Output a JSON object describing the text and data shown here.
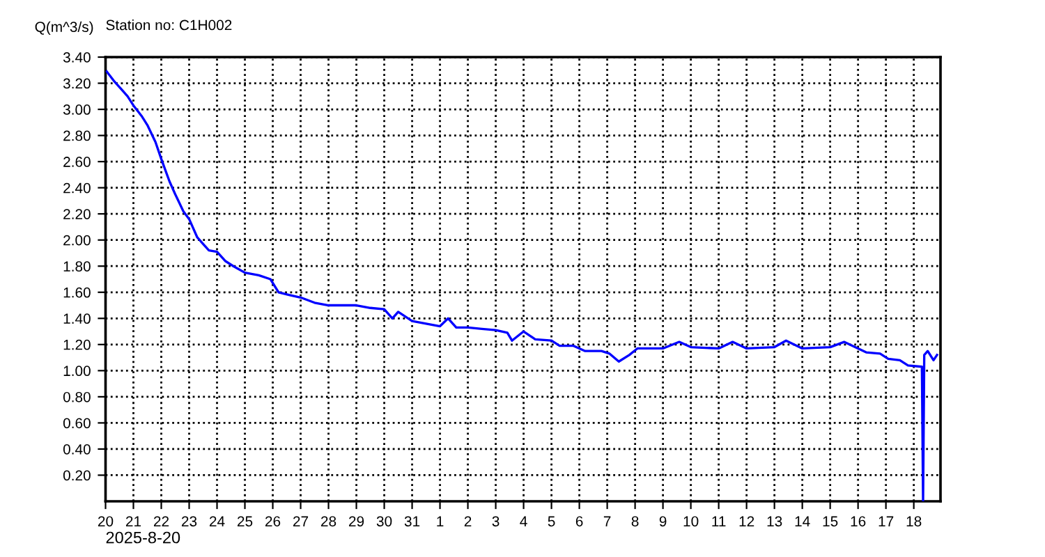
{
  "chart_data": {
    "type": "line",
    "title": "Station no: C1H002",
    "ylabel": "Q(m^3/s)",
    "xlabel": "2025-8-20",
    "x": [
      "2025-08-20T01:00",
      "2025-08-20T07:00",
      "2025-08-20T14:00",
      "2025-08-20T19:00",
      "2025-08-21T00:00",
      "2025-08-21T07:00",
      "2025-08-21T12:00",
      "2025-08-21T19:00",
      "2025-08-22T00:00",
      "2025-08-22T07:00",
      "2025-08-22T12:00",
      "2025-08-22T19:00",
      "2025-08-23T00:00",
      "2025-08-23T07:00",
      "2025-08-23T12:00",
      "2025-08-23T17:00",
      "2025-08-24T00:00",
      "2025-08-24T07:00",
      "2025-08-24T14:00",
      "2025-08-25T00:00",
      "2025-08-25T12:00",
      "2025-08-25T22:00",
      "2025-08-26T05:00",
      "2025-08-26T14:00",
      "2025-08-27T00:00",
      "2025-08-27T12:00",
      "2025-08-28T00:00",
      "2025-08-28T12:00",
      "2025-08-29T00:00",
      "2025-08-29T12:00",
      "2025-08-30T00:00",
      "2025-08-30T07:00",
      "2025-08-30T12:00",
      "2025-08-31T00:00",
      "2025-08-31T12:00",
      "2025-09-01T00:00",
      "2025-09-01T07:00",
      "2025-09-01T14:00",
      "2025-09-02T00:00",
      "2025-09-02T12:00",
      "2025-09-03T00:00",
      "2025-09-03T10:00",
      "2025-09-03T14:00",
      "2025-09-04T00:00",
      "2025-09-04T10:00",
      "2025-09-05T00:00",
      "2025-09-05T07:00",
      "2025-09-05T19:00",
      "2025-09-06T05:00",
      "2025-09-06T19:00",
      "2025-09-07T02:00",
      "2025-09-07T10:00",
      "2025-09-07T19:00",
      "2025-09-08T02:00",
      "2025-09-09T00:00",
      "2025-09-09T14:00",
      "2025-09-10T00:00",
      "2025-09-11T00:00",
      "2025-09-11T12:00",
      "2025-09-12T00:00",
      "2025-09-13T00:00",
      "2025-09-13T10:00",
      "2025-09-14T00:00",
      "2025-09-15T00:00",
      "2025-09-15T12:00",
      "2025-09-16T00:00",
      "2025-09-16T07:00",
      "2025-09-16T19:00",
      "2025-09-17T02:00",
      "2025-09-17T12:00",
      "2025-09-17T19:00",
      "2025-09-18T07:00",
      "2025-09-18T08:00",
      "2025-09-18T09:00",
      "2025-09-18T12:00",
      "2025-09-18T17:00",
      "2025-09-18T20:00"
    ],
    "series": [
      {
        "color": "#0000ff",
        "values": [
          3.29,
          3.22,
          3.15,
          3.1,
          3.03,
          2.95,
          2.88,
          2.75,
          2.62,
          2.45,
          2.35,
          2.22,
          2.16,
          2.02,
          1.97,
          1.92,
          1.91,
          1.84,
          1.8,
          1.75,
          1.73,
          1.7,
          1.6,
          1.58,
          1.56,
          1.52,
          1.5,
          1.5,
          1.5,
          1.48,
          1.47,
          1.4,
          1.45,
          1.38,
          1.36,
          1.34,
          1.4,
          1.33,
          1.33,
          1.32,
          1.31,
          1.29,
          1.23,
          1.3,
          1.24,
          1.23,
          1.19,
          1.19,
          1.15,
          1.15,
          1.13,
          1.07,
          1.12,
          1.17,
          1.17,
          1.22,
          1.18,
          1.17,
          1.22,
          1.17,
          1.18,
          1.23,
          1.17,
          1.18,
          1.22,
          1.17,
          1.14,
          1.13,
          1.09,
          1.08,
          1.04,
          1.03,
          0,
          1.12,
          1.15,
          1.08,
          1.12
        ]
      }
    ],
    "xlim": [
      "2025-08-20",
      "2025-09-18T23:00"
    ],
    "xticks": [
      {
        "value": "2025-08-20",
        "label": "20"
      },
      {
        "value": "2025-08-21",
        "label": "21"
      },
      {
        "value": "2025-08-22",
        "label": "22"
      },
      {
        "value": "2025-08-23",
        "label": "23"
      },
      {
        "value": "2025-08-24",
        "label": "24"
      },
      {
        "value": "2025-08-25",
        "label": "25"
      },
      {
        "value": "2025-08-26",
        "label": "26"
      },
      {
        "value": "2025-08-27",
        "label": "27"
      },
      {
        "value": "2025-08-28",
        "label": "28"
      },
      {
        "value": "2025-08-29",
        "label": "29"
      },
      {
        "value": "2025-08-30",
        "label": "30"
      },
      {
        "value": "2025-08-31",
        "label": "31"
      },
      {
        "value": "2025-09-01",
        "label": "1"
      },
      {
        "value": "2025-09-02",
        "label": "2"
      },
      {
        "value": "2025-09-03",
        "label": "3"
      },
      {
        "value": "2025-09-04",
        "label": "4"
      },
      {
        "value": "2025-09-05",
        "label": "5"
      },
      {
        "value": "2025-09-06",
        "label": "6"
      },
      {
        "value": "2025-09-07",
        "label": "7"
      },
      {
        "value": "2025-09-08",
        "label": "8"
      },
      {
        "value": "2025-09-09",
        "label": "9"
      },
      {
        "value": "2025-09-10",
        "label": "10"
      },
      {
        "value": "2025-09-11",
        "label": "11"
      },
      {
        "value": "2025-09-12",
        "label": "12"
      },
      {
        "value": "2025-09-13",
        "label": "13"
      },
      {
        "value": "2025-09-14",
        "label": "14"
      },
      {
        "value": "2025-09-15",
        "label": "15"
      },
      {
        "value": "2025-09-16",
        "label": "16"
      },
      {
        "value": "2025-09-17",
        "label": "17"
      },
      {
        "value": "2025-09-18",
        "label": "18"
      }
    ],
    "ylim": [
      0,
      3.4
    ],
    "yticks": [
      {
        "value": 0.2,
        "label": "0.20"
      },
      {
        "value": 0.4,
        "label": "0.40"
      },
      {
        "value": 0.6,
        "label": "0.60"
      },
      {
        "value": 0.8,
        "label": "0.80"
      },
      {
        "value": 1.0,
        "label": "1.00"
      },
      {
        "value": 1.2,
        "label": "1.20"
      },
      {
        "value": 1.4,
        "label": "1.40"
      },
      {
        "value": 1.6,
        "label": "1.60"
      },
      {
        "value": 1.8,
        "label": "1.80"
      },
      {
        "value": 2.0,
        "label": "2.00"
      },
      {
        "value": 2.2,
        "label": "2.20"
      },
      {
        "value": 2.4,
        "label": "2.40"
      },
      {
        "value": 2.6,
        "label": "2.60"
      },
      {
        "value": 2.8,
        "label": "2.80"
      },
      {
        "value": 3.0,
        "label": "3.00"
      },
      {
        "value": 3.2,
        "label": "3.20"
      },
      {
        "value": 3.4,
        "label": "3.40"
      }
    ],
    "grid": true,
    "line_style": "solid",
    "marker": "none"
  }
}
